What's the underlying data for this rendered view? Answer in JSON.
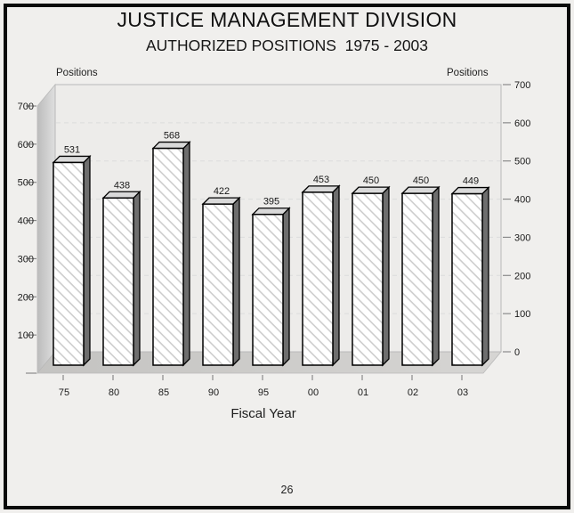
{
  "page": {
    "number": "26",
    "background": "#f0efed"
  },
  "chart_data": {
    "type": "bar",
    "title": "JUSTICE MANAGEMENT DIVISION",
    "subtitle": "AUTHORIZED POSITIONS  1975 - 2003",
    "ylabel_left": "Positions",
    "ylabel_right": "Positions",
    "xlabel": "Fiscal Year",
    "categories": [
      "75",
      "80",
      "85",
      "90",
      "95",
      "00",
      "01",
      "02",
      "03"
    ],
    "values": [
      531,
      438,
      568,
      422,
      395,
      453,
      450,
      450,
      449
    ],
    "ylim": [
      0,
      700
    ],
    "ytick_interval": 100,
    "grid": "dashed-horizontal",
    "legend": "none",
    "style": "3d-bars-diagonal-hatch",
    "colors": {
      "bar_face": "#ffffff",
      "bar_hatch": "#cdcdcd",
      "bar_outline": "#000000",
      "bar_top": "#d9d9d9",
      "bar_side": "#6e6e6e",
      "back_wall": "#edecea",
      "left_wall_dark": "#bcbcbc",
      "left_wall_light": "#dfdfdf",
      "floor_dark": "#c4c3c1",
      "floor_light": "#d6d5d3",
      "gridline": "#dcdcdc",
      "wall_edge": "#b9b9b9",
      "axis": "#8a8a8a",
      "text": "#1a1a1a"
    }
  }
}
